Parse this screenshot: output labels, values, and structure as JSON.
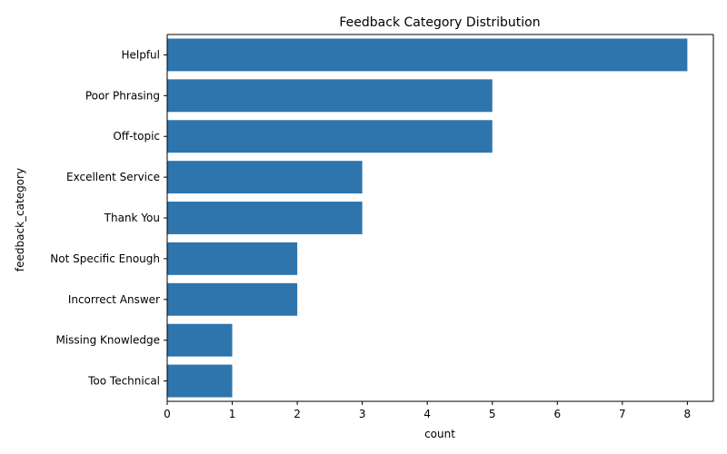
{
  "chart_data": {
    "type": "bar",
    "orientation": "horizontal",
    "title": "Feedback Category Distribution",
    "xlabel": "count",
    "ylabel": "feedback_category",
    "categories": [
      "Helpful",
      "Poor Phrasing",
      "Off-topic",
      "Excellent Service",
      "Thank You",
      "Not Specific Enough",
      "Incorrect Answer",
      "Missing Knowledge",
      "Too Technical"
    ],
    "values": [
      8,
      5,
      5,
      3,
      3,
      2,
      2,
      1,
      1
    ],
    "xlim": [
      0,
      8.4
    ],
    "xticks": [
      0,
      1,
      2,
      3,
      4,
      5,
      6,
      7,
      8
    ],
    "bar_color": "#2e75ad",
    "grid": false,
    "legend": "none"
  }
}
